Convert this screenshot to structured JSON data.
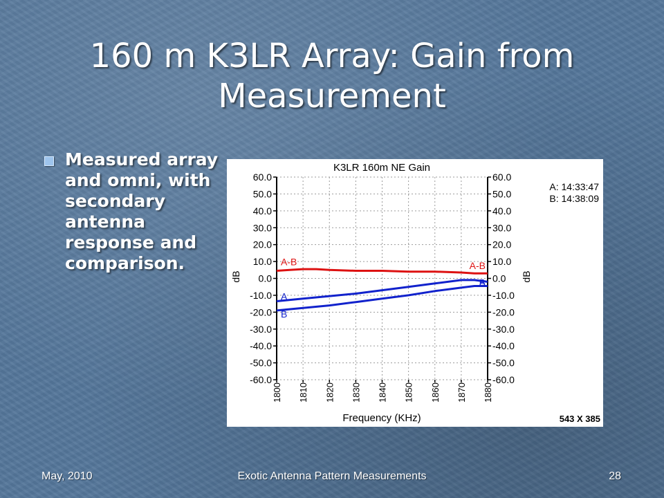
{
  "slide": {
    "title_line1": "160 m K3LR Array: Gain from",
    "title_line2": "Measurement",
    "bullet": "Measured array and omni, with secondary antenna response and comparison."
  },
  "footer": {
    "date": "May, 2010",
    "center": "Exotic Antenna Pattern Measurements",
    "page": "28"
  },
  "chart_data": {
    "type": "line",
    "title": "K3LR 160m NE Gain",
    "xlabel": "Frequency (KHz)",
    "ylabel_left": "dB",
    "ylabel_right": "dB",
    "xlim": [
      1800,
      1880
    ],
    "ylim": [
      -60,
      60
    ],
    "x_ticks": [
      "1800",
      "1810",
      "1820",
      "1830",
      "1840",
      "1850",
      "1860",
      "1870",
      "1880"
    ],
    "y_ticks": [
      "60.0",
      "50.0",
      "40.0",
      "30.0",
      "20.0",
      "10.0",
      "0.0",
      "-10.0",
      "-20.0",
      "-30.0",
      "-40.0",
      "-50.0",
      "-60.0"
    ],
    "grid": true,
    "timestamps": [
      "A: 14:33:47",
      "B: 14:38:09"
    ],
    "size_label": "543 X 385",
    "series": [
      {
        "name": "A-B",
        "color": "#dd1111",
        "x": [
          1800,
          1805,
          1810,
          1815,
          1820,
          1830,
          1840,
          1850,
          1860,
          1870,
          1875,
          1880
        ],
        "y": [
          4.5,
          5.0,
          5.5,
          5.5,
          5.0,
          4.5,
          4.5,
          4.0,
          4.0,
          3.5,
          3.0,
          3.0
        ]
      },
      {
        "name": "A",
        "color": "#1122cc",
        "x": [
          1800,
          1810,
          1820,
          1830,
          1840,
          1850,
          1860,
          1870,
          1875,
          1880
        ],
        "y": [
          -13.5,
          -12.0,
          -10.5,
          -9.0,
          -7.0,
          -5.0,
          -3.0,
          -1.0,
          -1.0,
          -2.0
        ]
      },
      {
        "name": "B",
        "color": "#1122cc",
        "x": [
          1800,
          1810,
          1820,
          1830,
          1840,
          1850,
          1860,
          1870,
          1875,
          1880
        ],
        "y": [
          -19.0,
          -17.5,
          -16.0,
          -14.0,
          -12.0,
          -10.0,
          -7.5,
          -5.5,
          -4.5,
          -4.5
        ]
      }
    ]
  }
}
